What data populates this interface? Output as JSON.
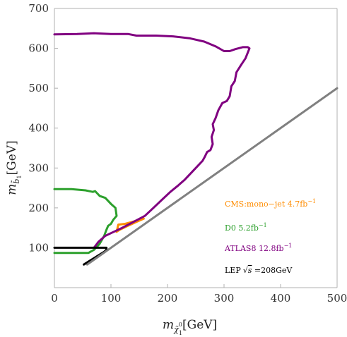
{
  "chart_data": {
    "type": "line",
    "title": "",
    "xlabel": {
      "main": "m",
      "sub": "χ̃",
      "subsup": "0",
      "subsub": "1",
      "unit": "[GeV]"
    },
    "ylabel": {
      "main": "m",
      "sub": "b̃",
      "subsub": "1",
      "unit": "[GeV]"
    },
    "xlim": [
      0,
      500
    ],
    "ylim": [
      0,
      700
    ],
    "xticks": [
      0,
      100,
      200,
      300,
      400,
      500
    ],
    "yticks": [
      100,
      200,
      300,
      400,
      500,
      600,
      700
    ],
    "grid": false,
    "legend_placement": "bottom-right (inside plot)",
    "series": [
      {
        "name": "CMS:mono−jet 4.7fb",
        "name_sup": "−1",
        "color": "#ff8c00",
        "points": [
          [
            110,
            140
          ],
          [
            113,
            158
          ],
          [
            125,
            160
          ],
          [
            138,
            165
          ],
          [
            150,
            170
          ],
          [
            158,
            173
          ],
          [
            145,
            165
          ],
          [
            130,
            155
          ],
          [
            115,
            145
          ],
          [
            110,
            140
          ]
        ]
      },
      {
        "name": "D0 5.2fb",
        "name_sup": "−1",
        "color": "#2ca02c",
        "points": [
          [
            0,
            247
          ],
          [
            30,
            247
          ],
          [
            55,
            244
          ],
          [
            68,
            240
          ],
          [
            72,
            242
          ],
          [
            80,
            230
          ],
          [
            90,
            225
          ],
          [
            100,
            210
          ],
          [
            108,
            200
          ],
          [
            110,
            180
          ],
          [
            104,
            170
          ],
          [
            100,
            160
          ],
          [
            95,
            155
          ],
          [
            92,
            145
          ],
          [
            88,
            130
          ],
          [
            80,
            110
          ],
          [
            70,
            95
          ],
          [
            60,
            87
          ],
          [
            0,
            87
          ]
        ]
      },
      {
        "name": "ATLAS8 12.8fb",
        "name_sup": "−1",
        "color": "#800080",
        "points": [
          [
            0,
            635
          ],
          [
            40,
            636
          ],
          [
            70,
            638
          ],
          [
            100,
            636
          ],
          [
            130,
            636
          ],
          [
            145,
            632
          ],
          [
            180,
            632
          ],
          [
            210,
            630
          ],
          [
            240,
            625
          ],
          [
            265,
            617
          ],
          [
            285,
            605
          ],
          [
            300,
            593
          ],
          [
            310,
            593
          ],
          [
            320,
            598
          ],
          [
            333,
            603
          ],
          [
            342,
            603
          ],
          [
            345,
            600
          ],
          [
            338,
            575
          ],
          [
            330,
            558
          ],
          [
            322,
            540
          ],
          [
            319,
            518
          ],
          [
            313,
            505
          ],
          [
            310,
            480
          ],
          [
            305,
            468
          ],
          [
            297,
            463
          ],
          [
            290,
            445
          ],
          [
            285,
            425
          ],
          [
            280,
            410
          ],
          [
            282,
            395
          ],
          [
            278,
            378
          ],
          [
            280,
            360
          ],
          [
            276,
            345
          ],
          [
            270,
            340
          ],
          [
            266,
            328
          ],
          [
            262,
            318
          ],
          [
            250,
            300
          ],
          [
            240,
            285
          ],
          [
            230,
            270
          ],
          [
            218,
            255
          ],
          [
            205,
            240
          ],
          [
            190,
            220
          ],
          [
            175,
            200
          ],
          [
            160,
            180
          ],
          [
            140,
            165
          ],
          [
            120,
            150
          ],
          [
            105,
            140
          ],
          [
            90,
            130
          ],
          [
            78,
            115
          ],
          [
            70,
            100
          ]
        ]
      },
      {
        "name": "LEP",
        "name_sqrt": "s",
        "name_tail": " =208GeV",
        "color": "#000000",
        "points": [
          [
            0,
            100
          ],
          [
            92,
            100
          ],
          [
            92,
            95
          ],
          [
            88,
            90
          ],
          [
            52,
            58
          ]
        ]
      },
      {
        "name": "",
        "color": "#808080",
        "points": [
          [
            58,
            58
          ],
          [
            500,
            500
          ]
        ]
      }
    ]
  }
}
